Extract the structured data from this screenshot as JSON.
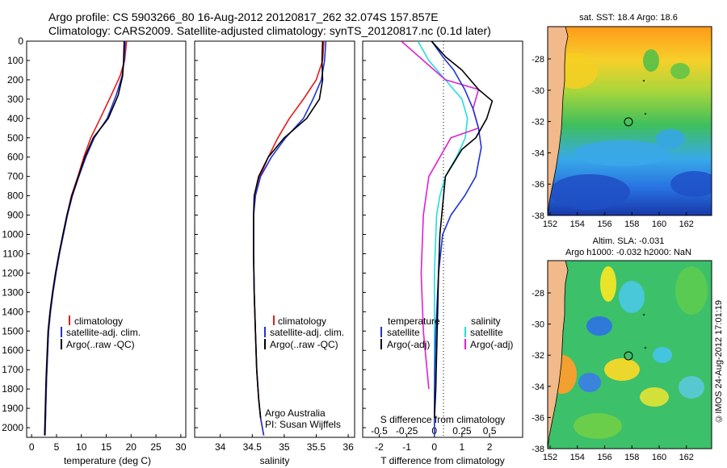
{
  "header": {
    "title_line1": "Argo profile: CS 5903266_80 16-Aug-2012 20120817_262 32.074S 157.857E",
    "title_line2": "Climatology: CARS2009. Satellite-adjusted climatology: synTS_20120817.nc (0.1d later)"
  },
  "colors": {
    "climatology": "#e41a1c",
    "satellite": "#1f33d6",
    "argo": "#000000",
    "satellite_s": "#22dddd",
    "argo_s": "#e020d0",
    "land": "#f2b98a"
  },
  "panel_temp": {
    "xlabel": "temperature (deg C)",
    "legend": [
      "climatology",
      "satellite-adj. clim.",
      "Argo(..raw -QC)"
    ]
  },
  "panel_sal": {
    "xlabel": "salinity",
    "legend": [
      "climatology",
      "satellite-adj. clim.",
      "Argo(..raw -QC)"
    ],
    "credit1": "Argo Australia",
    "credit2": "PI: Susan Wijffels"
  },
  "panel_diff": {
    "legend_head_t": "temperature",
    "legend_head_s": "salinity",
    "legend_t": [
      "satellite",
      "Argo(-adj)"
    ],
    "legend_s": [
      "satellite",
      "Argo(-adj)"
    ],
    "top_xlabel": "S difference from climatology",
    "bottom_xlabel": "T difference from climatology"
  },
  "map_sst": {
    "title": "sat. SST: 18.4  Argo: 18.6",
    "xticks": [
      "152",
      "154",
      "156",
      "158",
      "160",
      "162"
    ],
    "yticks": [
      "-28",
      "-30",
      "-32",
      "-34",
      "-36",
      "-38"
    ]
  },
  "map_sla": {
    "title1": "Altim. SLA: -0.031",
    "title2": "Argo h1000: -0.032 h2000: NaN",
    "xticks": [
      "152",
      "154",
      "156",
      "158",
      "160",
      "162"
    ],
    "yticks": [
      "-28",
      "-30",
      "-32",
      "-34",
      "-36",
      "-38"
    ]
  },
  "footer": {
    "stamp": "©IMOS 24-Aug-2012 17:01:19"
  },
  "chart_data": [
    {
      "type": "line",
      "title": "",
      "xlabel": "temperature (deg C)",
      "ylabel": "",
      "xlim": [
        -1,
        31
      ],
      "ylim": [
        2050,
        0
      ],
      "xticks": [
        0,
        5,
        10,
        15,
        20,
        25,
        30
      ],
      "yticks": [
        0,
        100,
        200,
        300,
        400,
        500,
        600,
        700,
        800,
        900,
        1000,
        1100,
        1200,
        1300,
        1400,
        1500,
        1600,
        1700,
        1800,
        1900,
        2000
      ],
      "legend": "lower-left",
      "series": [
        {
          "name": "climatology",
          "color": "climatology",
          "x": [
            19.1,
            18.7,
            17.8,
            16.0,
            13.8,
            11.9,
            10.5,
            9.3,
            8.0,
            7.1,
            6.3,
            5.6,
            4.9,
            4.3,
            3.8,
            3.4,
            3.0,
            2.7
          ],
          "y": [
            0,
            100,
            180,
            280,
            400,
            500,
            600,
            700,
            800,
            900,
            1000,
            1100,
            1200,
            1300,
            1400,
            1500,
            1750,
            2040
          ]
        },
        {
          "name": "satellite-adj. clim.",
          "color": "satellite",
          "x": [
            18.8,
            18.6,
            18.2,
            17.0,
            15.2,
            12.6,
            10.9,
            9.5,
            8.2,
            7.2,
            6.4,
            5.6,
            4.9,
            4.3,
            3.8,
            3.4,
            3.0,
            2.7
          ],
          "y": [
            0,
            100,
            180,
            280,
            400,
            500,
            600,
            700,
            800,
            900,
            1000,
            1100,
            1200,
            1300,
            1400,
            1500,
            1750,
            2040
          ]
        },
        {
          "name": "Argo(..raw -QC)",
          "color": "argo",
          "x": [
            18.6,
            18.5,
            18.3,
            17.4,
            15.4,
            12.4,
            10.7,
            9.4,
            8.1,
            7.1,
            6.3,
            5.5,
            4.8,
            4.2,
            3.7,
            3.3,
            2.9,
            2.6
          ],
          "y": [
            0,
            100,
            180,
            280,
            400,
            500,
            600,
            700,
            800,
            900,
            1000,
            1100,
            1200,
            1300,
            1400,
            1500,
            1750,
            2040
          ]
        }
      ]
    },
    {
      "type": "line",
      "title": "",
      "xlabel": "salinity",
      "ylabel": "",
      "xlim": [
        33.6,
        36.1
      ],
      "ylim": [
        2050,
        0
      ],
      "xticks": [
        34,
        34.5,
        35,
        35.5,
        36
      ],
      "legend": "lower-left",
      "series": [
        {
          "name": "climatology",
          "color": "climatology",
          "x": [
            35.62,
            35.6,
            35.5,
            35.3,
            35.08,
            34.9,
            34.75,
            34.62,
            34.55,
            34.52,
            34.52,
            34.53,
            34.55,
            34.57,
            34.6,
            34.63,
            34.68
          ],
          "y": [
            0,
            100,
            200,
            300,
            400,
            500,
            600,
            700,
            800,
            900,
            1100,
            1300,
            1500,
            1700,
            1850,
            1950,
            2040
          ]
        },
        {
          "name": "satellite-adj. clim.",
          "color": "satellite",
          "x": [
            35.65,
            35.63,
            35.58,
            35.45,
            35.3,
            35.02,
            34.8,
            34.63,
            34.55,
            34.52,
            34.52,
            34.53,
            34.55,
            34.57,
            34.6,
            34.63,
            34.68
          ],
          "y": [
            0,
            100,
            200,
            300,
            400,
            500,
            600,
            700,
            800,
            900,
            1100,
            1300,
            1500,
            1700,
            1850,
            1950,
            2040
          ]
        },
        {
          "name": "Argo(..raw -QC)",
          "color": "argo",
          "x": [
            35.6,
            35.59,
            35.6,
            35.55,
            35.35,
            35.0,
            34.75,
            34.6,
            34.53,
            34.52,
            34.52,
            34.53,
            34.55,
            34.57,
            34.6,
            34.63
          ],
          "y": [
            0,
            100,
            200,
            300,
            400,
            500,
            600,
            700,
            800,
            900,
            1100,
            1300,
            1500,
            1700,
            1850,
            1950
          ]
        }
      ]
    },
    {
      "type": "line",
      "title": "",
      "xlabel": "T difference from climatology",
      "x2label": "S difference from climatology",
      "ylabel": "",
      "xlim": [
        -2.6,
        3.2
      ],
      "ylim": [
        2050,
        0
      ],
      "xticks": [
        -2,
        -1,
        0,
        1,
        2
      ],
      "x2ticks": [
        -0.5,
        -0.25,
        0,
        0.25,
        0.5
      ],
      "legend": "lower-center",
      "series": [
        {
          "name": "satellite",
          "group": "temperature",
          "color": "satellite",
          "x": [
            -0.1,
            0.3,
            0.7,
            1.1,
            1.4,
            1.6,
            1.7,
            1.5,
            1.1,
            0.6,
            0.3,
            0.15,
            0.05,
            0.0,
            0.0
          ],
          "y": [
            0,
            80,
            150,
            250,
            350,
            450,
            550,
            700,
            800,
            900,
            1000,
            1200,
            1500,
            1800,
            2040
          ]
        },
        {
          "name": "Argo(-adj)",
          "group": "temperature",
          "color": "argo",
          "x": [
            -0.1,
            0.4,
            1.0,
            1.6,
            2.1,
            1.9,
            1.5,
            1.0,
            0.4,
            0.3,
            0.2,
            0.15,
            0.1,
            0.05,
            0.0
          ],
          "y": [
            0,
            80,
            150,
            250,
            310,
            400,
            500,
            560,
            700,
            850,
            1000,
            1200,
            1500,
            1800,
            1950
          ]
        },
        {
          "name": "satellite",
          "group": "salinity",
          "color": "satellite_s",
          "x": [
            -0.15,
            -0.05,
            0.1,
            0.25,
            0.3,
            0.28,
            0.2,
            0.1,
            0.05,
            0.02,
            0.0,
            0.0,
            0.0
          ],
          "y": [
            0,
            100,
            200,
            300,
            400,
            500,
            600,
            700,
            800,
            900,
            1200,
            1600,
            2000
          ]
        },
        {
          "name": "Argo(-adj)",
          "group": "salinity",
          "color": "argo_s",
          "x": [
            -0.3,
            -0.1,
            0.1,
            0.4,
            0.35,
            0.4,
            0.15,
            0.05,
            -0.05,
            -0.1,
            -0.12,
            -0.1,
            -0.05
          ],
          "y": [
            0,
            100,
            200,
            250,
            350,
            450,
            500,
            600,
            700,
            900,
            1200,
            1500,
            1800
          ]
        }
      ]
    }
  ]
}
